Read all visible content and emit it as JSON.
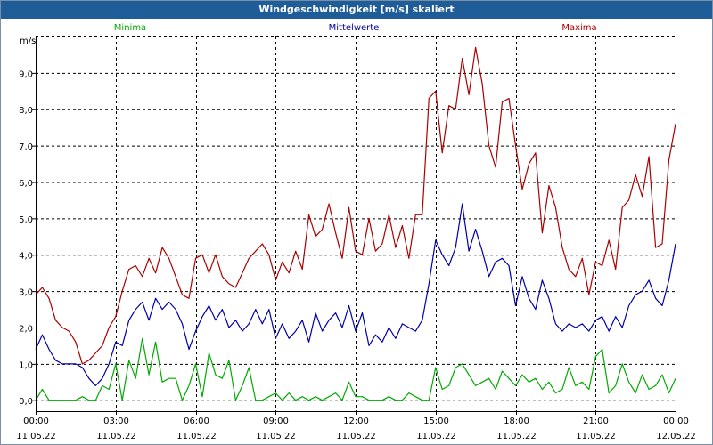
{
  "window": {
    "title": "Windgeschwindigkeit [m/s] skaliert"
  },
  "chart_data": {
    "type": "line",
    "title": "Windgeschwindigkeit [m/s] skaliert",
    "ylabel": "m/s",
    "xlabel": "",
    "ylim": [
      -0.3,
      10.0
    ],
    "xlim": [
      0,
      24
    ],
    "grid": true,
    "legend_placement": "top",
    "y_ticks": [
      {
        "value": 0,
        "label": "0,0"
      },
      {
        "value": 1,
        "label": "1,0"
      },
      {
        "value": 2,
        "label": "2,0"
      },
      {
        "value": 3,
        "label": "3,0"
      },
      {
        "value": 4,
        "label": "4,0"
      },
      {
        "value": 5,
        "label": "5,0"
      },
      {
        "value": 6,
        "label": "6,0"
      },
      {
        "value": 7,
        "label": "7,0"
      },
      {
        "value": 8,
        "label": "8,0"
      },
      {
        "value": 9,
        "label": "9,0"
      }
    ],
    "x_ticks": [
      {
        "value": 0,
        "time": "00:00",
        "date": "11.05.22"
      },
      {
        "value": 3,
        "time": "03:00",
        "date": "11.05.22"
      },
      {
        "value": 6,
        "time": "06:00",
        "date": "11.05.22"
      },
      {
        "value": 9,
        "time": "09:00",
        "date": "11.05.22"
      },
      {
        "value": 12,
        "time": "12:00",
        "date": "11.05.22"
      },
      {
        "value": 15,
        "time": "15:00",
        "date": "11.05.22"
      },
      {
        "value": 18,
        "time": "18:00",
        "date": "11.05.22"
      },
      {
        "value": 21,
        "time": "21:00",
        "date": "11.05.22"
      },
      {
        "value": 24,
        "time": "00:00",
        "date": "12.05.22"
      }
    ],
    "series": [
      {
        "name": "Minima",
        "color": "#00aa00",
        "x": [
          0,
          0.25,
          0.5,
          0.75,
          1.0,
          1.25,
          1.5,
          1.75,
          2.0,
          2.25,
          2.5,
          2.75,
          3.0,
          3.25,
          3.5,
          3.75,
          4.0,
          4.25,
          4.5,
          4.75,
          5.0,
          5.25,
          5.5,
          5.75,
          6.0,
          6.25,
          6.5,
          6.75,
          7.0,
          7.25,
          7.5,
          7.75,
          8.0,
          8.25,
          8.5,
          8.75,
          9.0,
          9.25,
          9.5,
          9.75,
          10.0,
          10.25,
          10.5,
          10.75,
          11.0,
          11.25,
          11.5,
          11.75,
          12.0,
          12.25,
          12.5,
          12.75,
          13.0,
          13.25,
          13.5,
          13.75,
          14.0,
          14.25,
          14.5,
          14.75,
          15.0,
          15.25,
          15.5,
          15.75,
          16.0,
          16.25,
          16.5,
          16.75,
          17.0,
          17.25,
          17.5,
          17.75,
          18.0,
          18.25,
          18.5,
          18.75,
          19.0,
          19.25,
          19.5,
          19.75,
          20.0,
          20.25,
          20.5,
          20.75,
          21.0,
          21.25,
          21.5,
          21.75,
          22.0,
          22.25,
          22.5,
          22.75,
          23.0,
          23.25,
          23.5,
          23.75,
          24.0
        ],
        "values": [
          0.0,
          0.3,
          0.0,
          0.0,
          0.0,
          0.0,
          0.0,
          0.1,
          0.0,
          0.0,
          0.4,
          0.3,
          1.0,
          0.0,
          1.1,
          0.6,
          1.7,
          0.7,
          1.6,
          0.5,
          0.6,
          0.6,
          0.0,
          0.4,
          1.0,
          0.1,
          1.3,
          0.7,
          0.6,
          1.1,
          0.0,
          0.4,
          0.9,
          0.0,
          0.0,
          0.1,
          0.2,
          0.0,
          0.2,
          0.0,
          0.1,
          0.0,
          0.1,
          0.0,
          0.1,
          0.2,
          0.0,
          0.5,
          0.1,
          0.1,
          0.0,
          0.0,
          0.0,
          0.1,
          0.0,
          0.0,
          0.2,
          0.1,
          0.0,
          0.0,
          0.9,
          0.3,
          0.4,
          0.9,
          1.0,
          0.7,
          0.4,
          0.5,
          0.6,
          0.3,
          0.8,
          0.6,
          0.4,
          0.7,
          0.5,
          0.6,
          0.3,
          0.5,
          0.2,
          0.3,
          0.9,
          0.4,
          0.5,
          0.3,
          1.2,
          1.4,
          0.2,
          0.4,
          1.0,
          0.5,
          0.2,
          0.7,
          0.3,
          0.4,
          0.7,
          0.2,
          0.6
        ]
      },
      {
        "name": "Mittelwerte",
        "color": "#0000aa",
        "x": [
          0,
          0.25,
          0.5,
          0.75,
          1.0,
          1.25,
          1.5,
          1.75,
          2.0,
          2.25,
          2.5,
          2.75,
          3.0,
          3.25,
          3.5,
          3.75,
          4.0,
          4.25,
          4.5,
          4.75,
          5.0,
          5.25,
          5.5,
          5.75,
          6.0,
          6.25,
          6.5,
          6.75,
          7.0,
          7.25,
          7.5,
          7.75,
          8.0,
          8.25,
          8.5,
          8.75,
          9.0,
          9.25,
          9.5,
          9.75,
          10.0,
          10.25,
          10.5,
          10.75,
          11.0,
          11.25,
          11.5,
          11.75,
          12.0,
          12.25,
          12.5,
          12.75,
          13.0,
          13.25,
          13.5,
          13.75,
          14.0,
          14.25,
          14.5,
          14.75,
          15.0,
          15.25,
          15.5,
          15.75,
          16.0,
          16.25,
          16.5,
          16.75,
          17.0,
          17.25,
          17.5,
          17.75,
          18.0,
          18.25,
          18.5,
          18.75,
          19.0,
          19.25,
          19.5,
          19.75,
          20.0,
          20.25,
          20.5,
          20.75,
          21.0,
          21.25,
          21.5,
          21.75,
          22.0,
          22.25,
          22.5,
          22.75,
          23.0,
          23.25,
          23.5,
          23.75,
          24.0
        ],
        "values": [
          1.4,
          1.8,
          1.4,
          1.1,
          1.0,
          1.0,
          1.0,
          0.9,
          0.6,
          0.4,
          0.6,
          1.0,
          1.6,
          1.5,
          2.2,
          2.5,
          2.7,
          2.2,
          2.8,
          2.5,
          2.7,
          2.5,
          2.1,
          1.4,
          1.9,
          2.3,
          2.6,
          2.2,
          2.5,
          2.0,
          2.2,
          1.9,
          2.1,
          2.5,
          2.1,
          2.5,
          1.7,
          2.1,
          1.7,
          1.9,
          2.2,
          1.6,
          2.4,
          1.9,
          2.2,
          2.4,
          2.0,
          2.6,
          1.9,
          2.4,
          1.5,
          1.8,
          1.6,
          2.0,
          1.7,
          2.1,
          2.0,
          1.9,
          2.2,
          3.2,
          4.4,
          4.0,
          3.7,
          4.2,
          5.4,
          4.1,
          4.7,
          4.1,
          3.4,
          3.8,
          3.9,
          3.7,
          2.6,
          3.4,
          2.8,
          2.5,
          3.3,
          2.8,
          2.1,
          1.9,
          2.1,
          2.0,
          2.1,
          1.9,
          2.2,
          2.3,
          1.9,
          2.3,
          2.0,
          2.6,
          2.9,
          3.0,
          3.3,
          2.8,
          2.6,
          3.3,
          4.3
        ]
      },
      {
        "name": "Maxima",
        "color": "#aa0000",
        "x": [
          0,
          0.25,
          0.5,
          0.75,
          1.0,
          1.25,
          1.5,
          1.75,
          2.0,
          2.25,
          2.5,
          2.75,
          3.0,
          3.25,
          3.5,
          3.75,
          4.0,
          4.25,
          4.5,
          4.75,
          5.0,
          5.25,
          5.5,
          5.75,
          6.0,
          6.25,
          6.5,
          6.75,
          7.0,
          7.25,
          7.5,
          7.75,
          8.0,
          8.25,
          8.5,
          8.75,
          9.0,
          9.25,
          9.5,
          9.75,
          10.0,
          10.25,
          10.5,
          10.75,
          11.0,
          11.25,
          11.5,
          11.75,
          12.0,
          12.25,
          12.5,
          12.75,
          13.0,
          13.25,
          13.5,
          13.75,
          14.0,
          14.25,
          14.5,
          14.75,
          15.0,
          15.25,
          15.5,
          15.75,
          16.0,
          16.25,
          16.5,
          16.75,
          17.0,
          17.25,
          17.5,
          17.75,
          18.0,
          18.25,
          18.5,
          18.75,
          19.0,
          19.25,
          19.5,
          19.75,
          20.0,
          20.25,
          20.5,
          20.75,
          21.0,
          21.25,
          21.5,
          21.75,
          22.0,
          22.25,
          22.5,
          22.75,
          23.0,
          23.25,
          23.5,
          23.75,
          24.0
        ],
        "values": [
          2.9,
          3.1,
          2.8,
          2.2,
          2.0,
          1.9,
          1.6,
          1.0,
          1.1,
          1.3,
          1.5,
          2.0,
          2.3,
          3.0,
          3.6,
          3.7,
          3.4,
          3.9,
          3.5,
          4.2,
          3.9,
          3.4,
          2.9,
          2.8,
          3.9,
          4.0,
          3.5,
          4.0,
          3.4,
          3.2,
          3.1,
          3.5,
          3.9,
          4.1,
          4.3,
          4.0,
          3.3,
          3.8,
          3.5,
          4.1,
          3.6,
          5.1,
          4.5,
          4.7,
          5.4,
          4.6,
          3.9,
          5.3,
          4.1,
          4.0,
          5.0,
          4.1,
          4.3,
          5.1,
          4.2,
          4.8,
          3.9,
          5.1,
          5.1,
          8.3,
          8.5,
          6.8,
          8.1,
          8.0,
          9.4,
          8.4,
          9.7,
          8.7,
          7.0,
          6.4,
          8.2,
          8.3,
          7.0,
          5.8,
          6.5,
          6.8,
          4.6,
          5.9,
          5.3,
          4.2,
          3.6,
          3.4,
          3.9,
          2.9,
          3.8,
          3.7,
          4.4,
          3.6,
          5.3,
          5.5,
          6.2,
          5.6,
          6.7,
          4.2,
          4.3,
          6.6,
          7.6
        ]
      }
    ]
  }
}
